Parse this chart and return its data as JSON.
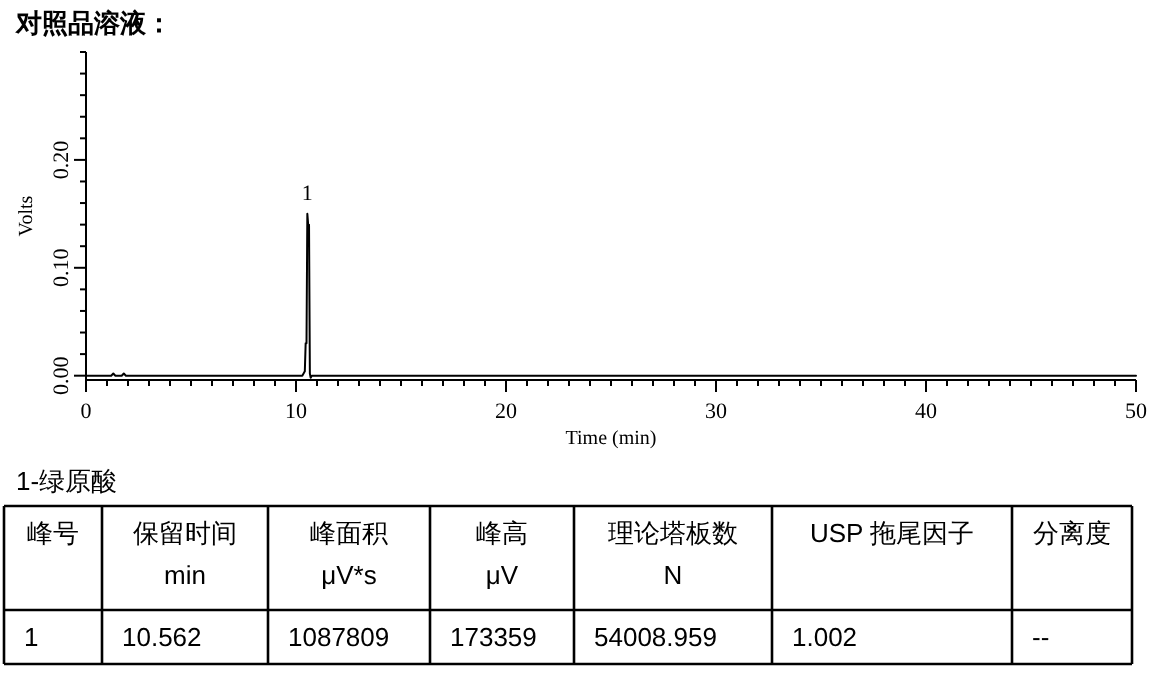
{
  "chart_data": {
    "type": "line",
    "title": "对照品溶液：",
    "xlabel": "Time (min)",
    "ylabel": "Volts",
    "x": [
      0,
      1.2,
      1.3,
      1.4,
      1.7,
      1.8,
      1.9,
      10.3,
      10.42,
      10.46,
      10.5,
      10.54,
      10.58,
      10.62,
      10.66,
      10.7,
      10.75,
      50
    ],
    "series": [
      {
        "color": "#000000",
        "values": [
          0,
          0,
          0.002,
          0,
          0,
          0.002,
          0,
          0,
          0.004,
          0.03,
          0.03,
          0.15,
          0.14,
          0.14,
          0.002,
          -0.002,
          0,
          0
        ]
      }
    ],
    "xlim": [
      0,
      50
    ],
    "ylim": [
      -0.004,
      0.3
    ],
    "xticks": [
      0,
      {
        "value": 1,
        "label": null
      },
      {
        "value": 2,
        "label": null
      },
      {
        "value": 3,
        "label": null
      },
      {
        "value": 4,
        "label": null
      },
      {
        "value": 5,
        "label": null
      },
      {
        "value": 6,
        "label": null
      },
      {
        "value": 7,
        "label": null
      },
      {
        "value": 8,
        "label": null
      },
      {
        "value": 9,
        "label": null
      },
      10,
      {
        "value": 11,
        "label": null
      },
      {
        "value": 12,
        "label": null
      },
      {
        "value": 13,
        "label": null
      },
      {
        "value": 14,
        "label": null
      },
      {
        "value": 15,
        "label": null
      },
      {
        "value": 16,
        "label": null
      },
      {
        "value": 17,
        "label": null
      },
      {
        "value": 18,
        "label": null
      },
      {
        "value": 19,
        "label": null
      },
      20,
      {
        "value": 21,
        "label": null
      },
      {
        "value": 22,
        "label": null
      },
      {
        "value": 23,
        "label": null
      },
      {
        "value": 24,
        "label": null
      },
      {
        "value": 25,
        "label": null
      },
      {
        "value": 26,
        "label": null
      },
      {
        "value": 27,
        "label": null
      },
      {
        "value": 28,
        "label": null
      },
      {
        "value": 29,
        "label": null
      },
      30,
      {
        "value": 31,
        "label": null
      },
      {
        "value": 32,
        "label": null
      },
      {
        "value": 33,
        "label": null
      },
      {
        "value": 34,
        "label": null
      },
      {
        "value": 35,
        "label": null
      },
      {
        "value": 36,
        "label": null
      },
      {
        "value": 37,
        "label": null
      },
      {
        "value": 38,
        "label": null
      },
      {
        "value": 39,
        "label": null
      },
      40,
      {
        "value": 41,
        "label": null
      },
      {
        "value": 42,
        "label": null
      },
      {
        "value": 43,
        "label": null
      },
      {
        "value": 44,
        "label": null
      },
      {
        "value": 45,
        "label": null
      },
      {
        "value": 46,
        "label": null
      },
      {
        "value": 47,
        "label": null
      },
      {
        "value": 48,
        "label": null
      },
      {
        "value": 49,
        "label": null
      },
      50
    ],
    "yticks": [
      {
        "value": 0,
        "label": "0.00"
      },
      {
        "value": 0.02,
        "label": null
      },
      {
        "value": 0.04,
        "label": null
      },
      {
        "value": 0.06,
        "label": null
      },
      {
        "value": 0.08,
        "label": null
      },
      {
        "value": 0.1,
        "label": "0.10"
      },
      {
        "value": 0.12,
        "label": null
      },
      {
        "value": 0.14,
        "label": null
      },
      {
        "value": 0.16,
        "label": null
      },
      {
        "value": 0.18,
        "label": null
      },
      {
        "value": 0.2,
        "label": "0.20"
      },
      {
        "value": 0.22,
        "label": null
      },
      {
        "value": 0.24,
        "label": null
      },
      {
        "value": 0.26,
        "label": null
      },
      {
        "value": 0.28,
        "label": null
      },
      {
        "value": 0.3,
        "label": null
      }
    ],
    "grid": false,
    "marker": "none",
    "line_style": "solid",
    "annotations": [
      {
        "text": "1",
        "x": 10.54,
        "y": 0.15
      },
      "1-绿原酸",
      "峰号",
      "保留时间\nmin",
      "峰面积\nμV*s",
      "峰高\nμV",
      "理论塔板数\nN",
      "USP 拖尾因子",
      "分离度",
      "1",
      "10.562",
      "1087809",
      "173359",
      "54008.959",
      "1.002",
      "--"
    ]
  }
}
